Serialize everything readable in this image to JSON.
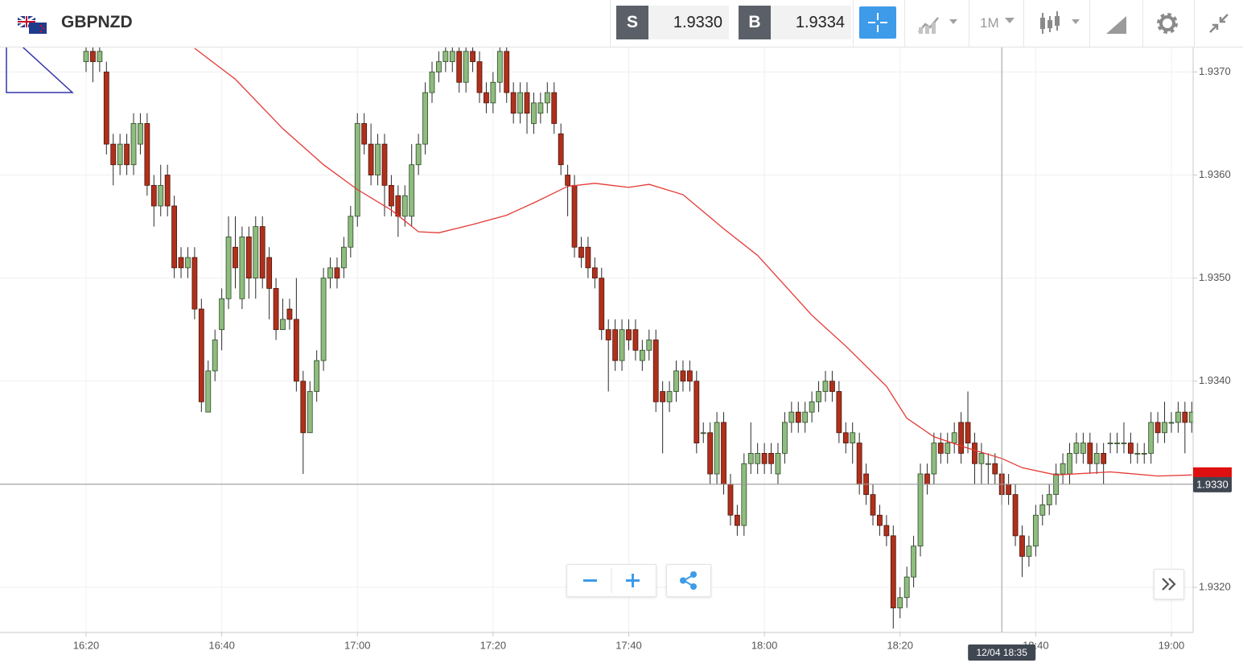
{
  "header": {
    "symbol": "GBPNZD",
    "sell_label": "S",
    "sell": "1.9330",
    "buy_label": "B",
    "buy": "1.9334",
    "timeframe": "1M"
  },
  "chart_data": {
    "type": "candlestick",
    "x": [
      "16:20",
      "16:21",
      "16:22",
      "16:23",
      "16:24",
      "16:25",
      "16:26",
      "16:27",
      "16:28",
      "16:29",
      "16:30",
      "16:31",
      "16:32",
      "16:33",
      "16:34",
      "16:35",
      "16:36",
      "16:37",
      "16:38",
      "16:39",
      "16:40",
      "16:41",
      "16:42",
      "16:43",
      "16:44",
      "16:45",
      "16:46",
      "16:47",
      "16:48",
      "16:49",
      "16:50",
      "16:51",
      "16:52",
      "16:53",
      "16:54",
      "16:55",
      "16:56",
      "16:57",
      "16:58",
      "16:59",
      "17:00",
      "17:01",
      "17:02",
      "17:03",
      "17:04",
      "17:05",
      "17:06",
      "17:07",
      "17:08",
      "17:09",
      "17:10",
      "17:11",
      "17:12",
      "17:13",
      "17:14",
      "17:15",
      "17:16",
      "17:17",
      "17:18",
      "17:19",
      "17:20",
      "17:21",
      "17:22",
      "17:23",
      "17:24",
      "17:25",
      "17:26",
      "17:27",
      "17:28",
      "17:29",
      "17:30",
      "17:31",
      "17:32",
      "17:33",
      "17:34",
      "17:35",
      "17:36",
      "17:37",
      "17:38",
      "17:39",
      "17:40",
      "17:41",
      "17:42",
      "17:43",
      "17:44",
      "17:45",
      "17:46",
      "17:47",
      "17:48",
      "17:49",
      "17:50",
      "17:51",
      "17:52",
      "17:53",
      "17:54",
      "17:55",
      "17:56",
      "17:57",
      "17:58",
      "17:59",
      "18:00",
      "18:01",
      "18:02",
      "18:03",
      "18:04",
      "18:05",
      "18:06",
      "18:07",
      "18:08",
      "18:09",
      "18:10",
      "18:11",
      "18:12",
      "18:13",
      "18:14",
      "18:15",
      "18:16",
      "18:17",
      "18:18",
      "18:19",
      "18:20",
      "18:21",
      "18:22",
      "18:23",
      "18:24",
      "18:25",
      "18:26",
      "18:27",
      "18:28",
      "18:29",
      "18:30",
      "18:31",
      "18:32",
      "18:33",
      "18:34",
      "18:35",
      "18:36",
      "18:37",
      "18:38",
      "18:39",
      "18:40",
      "18:41",
      "18:42",
      "18:43",
      "18:44",
      "18:45",
      "18:46",
      "18:47",
      "18:48",
      "18:49",
      "18:50",
      "18:51",
      "18:52",
      "18:53",
      "18:54",
      "18:55",
      "18:56",
      "18:57",
      "18:58",
      "18:59",
      "19:00",
      "19:01",
      "19:02",
      "19:03"
    ],
    "open": [
      1.9371,
      1.9372,
      1.9371,
      1.937,
      1.9363,
      1.9361,
      1.9363,
      1.9361,
      1.9363,
      1.9365,
      1.9359,
      1.9357,
      1.936,
      1.9357,
      1.9352,
      1.9351,
      1.9352,
      1.9347,
      1.9337,
      1.9341,
      1.9345,
      1.9348,
      1.9353,
      1.9348,
      1.9354,
      1.935,
      1.9355,
      1.9352,
      1.9349,
      1.9345,
      1.9347,
      1.9346,
      1.934,
      1.9335,
      1.9339,
      1.9342,
      1.935,
      1.9351,
      1.9351,
      1.9353,
      1.9356,
      1.9365,
      1.9363,
      1.936,
      1.9363,
      1.9359,
      1.9358,
      1.9356,
      1.9356,
      1.9361,
      1.9363,
      1.9368,
      1.937,
      1.9371,
      1.9371,
      1.9372,
      1.9369,
      1.9372,
      1.9371,
      1.9368,
      1.9367,
      1.9369,
      1.9372,
      1.9368,
      1.9366,
      1.9368,
      1.9365,
      1.9366,
      1.9367,
      1.9368,
      1.9364,
      1.936,
      1.9359,
      1.9353,
      1.9353,
      1.9351,
      1.935,
      1.9345,
      1.9345,
      1.9342,
      1.9345,
      1.9345,
      1.9342,
      1.9343,
      1.9344,
      1.9339,
      1.9338,
      1.9339,
      1.9341,
      1.9341,
      1.934,
      1.9335,
      1.9335,
      1.9331,
      1.9336,
      1.933,
      1.9327,
      1.9326,
      1.9332,
      1.9332,
      1.9333,
      1.9333,
      1.9331,
      1.9333,
      1.9336,
      1.9337,
      1.9336,
      1.9337,
      1.9338,
      1.9339,
      1.934,
      1.9339,
      1.9335,
      1.9334,
      1.9334,
      1.9331,
      1.9329,
      1.9327,
      1.9326,
      1.9325,
      1.9318,
      1.9319,
      1.9321,
      1.9324,
      1.9331,
      1.9331,
      1.9334,
      1.9333,
      1.9334,
      1.9336,
      1.9336,
      1.9334,
      1.9332,
      1.9332,
      1.9332,
      1.9331,
      1.933,
      1.9329,
      1.9325,
      1.9323,
      1.9324,
      1.9327,
      1.9328,
      1.9329,
      1.9331,
      1.9331,
      1.9333,
      1.9333,
      1.9334,
      1.9332,
      1.9333,
      1.9334,
      1.9334,
      1.9334,
      1.9334,
      1.9333,
      1.9333,
      1.9333,
      1.9336,
      1.9335,
      1.9336,
      1.9336,
      1.9337,
      1.9336
    ],
    "high": [
      1.9373,
      1.9373,
      1.9373,
      1.9371,
      1.9364,
      1.9364,
      1.9364,
      1.9366,
      1.9366,
      1.9366,
      1.936,
      1.9361,
      1.9361,
      1.9358,
      1.9353,
      1.9353,
      1.9353,
      1.9348,
      1.9342,
      1.9345,
      1.9349,
      1.9356,
      1.9356,
      1.9355,
      1.9355,
      1.9356,
      1.9356,
      1.9353,
      1.935,
      1.9348,
      1.9348,
      1.935,
      1.9341,
      1.934,
      1.9343,
      1.9351,
      1.9352,
      1.9352,
      1.9354,
      1.9357,
      1.9366,
      1.9366,
      1.9365,
      1.9364,
      1.9364,
      1.936,
      1.9359,
      1.9359,
      1.9363,
      1.9364,
      1.9369,
      1.9371,
      1.9372,
      1.9373,
      1.9373,
      1.9373,
      1.9373,
      1.9373,
      1.9372,
      1.9369,
      1.937,
      1.9373,
      1.9373,
      1.9369,
      1.9369,
      1.9369,
      1.9368,
      1.9368,
      1.9369,
      1.9369,
      1.9365,
      1.9361,
      1.936,
      1.9354,
      1.9354,
      1.9352,
      1.9351,
      1.9346,
      1.9346,
      1.9346,
      1.9346,
      1.9346,
      1.9344,
      1.9345,
      1.9345,
      1.934,
      1.934,
      1.9342,
      1.9342,
      1.9342,
      1.9341,
      1.9336,
      1.9336,
      1.9337,
      1.9337,
      1.9331,
      1.9328,
      1.9333,
      1.9336,
      1.9334,
      1.9334,
      1.9334,
      1.9334,
      1.9337,
      1.9338,
      1.9338,
      1.9338,
      1.9339,
      1.934,
      1.9341,
      1.9341,
      1.934,
      1.9336,
      1.9336,
      1.9335,
      1.9332,
      1.933,
      1.9328,
      1.9327,
      1.9326,
      1.932,
      1.9322,
      1.9325,
      1.9332,
      1.9332,
      1.9335,
      1.9335,
      1.9335,
      1.9336,
      1.9337,
      1.9339,
      1.9335,
      1.9334,
      1.9333,
      1.9333,
      1.9332,
      1.9331,
      1.933,
      1.9326,
      1.9325,
      1.9328,
      1.9329,
      1.933,
      1.9332,
      1.9333,
      1.9334,
      1.9335,
      1.9335,
      1.9335,
      1.9334,
      1.9334,
      1.9335,
      1.9335,
      1.9336,
      1.9335,
      1.9334,
      1.9334,
      1.9337,
      1.9337,
      1.9338,
      1.9337,
      1.9338,
      1.9338,
      1.9338
    ],
    "low": [
      1.937,
      1.9369,
      1.937,
      1.9362,
      1.9359,
      1.936,
      1.936,
      1.936,
      1.9362,
      1.9358,
      1.9355,
      1.9356,
      1.9356,
      1.935,
      1.935,
      1.935,
      1.9346,
      1.9337,
      1.9337,
      1.934,
      1.9343,
      1.9347,
      1.9349,
      1.9347,
      1.9348,
      1.9348,
      1.9349,
      1.9346,
      1.9344,
      1.9345,
      1.9345,
      1.9339,
      1.9331,
      1.9335,
      1.9338,
      1.9341,
      1.9349,
      1.9349,
      1.935,
      1.9352,
      1.9355,
      1.9362,
      1.9359,
      1.9359,
      1.9356,
      1.9356,
      1.9354,
      1.9355,
      1.9355,
      1.936,
      1.9362,
      1.9367,
      1.9369,
      1.937,
      1.937,
      1.9368,
      1.9368,
      1.937,
      1.9367,
      1.9366,
      1.9366,
      1.9368,
      1.9367,
      1.9365,
      1.9365,
      1.9364,
      1.9364,
      1.9365,
      1.9366,
      1.9364,
      1.936,
      1.9356,
      1.9352,
      1.9351,
      1.935,
      1.9349,
      1.9344,
      1.9339,
      1.9341,
      1.9341,
      1.9343,
      1.9342,
      1.9341,
      1.9342,
      1.9337,
      1.9333,
      1.9337,
      1.9338,
      1.9339,
      1.9339,
      1.9333,
      1.9334,
      1.933,
      1.933,
      1.9329,
      1.9326,
      1.9325,
      1.9325,
      1.9331,
      1.9331,
      1.9331,
      1.9331,
      1.933,
      1.9332,
      1.9335,
      1.9335,
      1.9335,
      1.9336,
      1.9337,
      1.9338,
      1.9338,
      1.9334,
      1.9333,
      1.9332,
      1.9329,
      1.9328,
      1.9326,
      1.9325,
      1.9324,
      1.9316,
      1.9317,
      1.9318,
      1.932,
      1.9323,
      1.9329,
      1.933,
      1.9332,
      1.9332,
      1.9333,
      1.9332,
      1.9333,
      1.933,
      1.933,
      1.933,
      1.933,
      1.9328,
      1.9328,
      1.9324,
      1.9321,
      1.9322,
      1.9323,
      1.9326,
      1.9327,
      1.9328,
      1.933,
      1.933,
      1.9332,
      1.9332,
      1.9331,
      1.9331,
      1.933,
      1.9333,
      1.9333,
      1.9333,
      1.9332,
      1.9332,
      1.9332,
      1.9332,
      1.9334,
      1.9334,
      1.9335,
      1.9335,
      1.9333,
      1.9335
    ],
    "close": [
      1.9372,
      1.9371,
      1.9372,
      1.9363,
      1.9361,
      1.9363,
      1.9361,
      1.9365,
      1.9365,
      1.9359,
      1.9357,
      1.9359,
      1.9357,
      1.9351,
      1.9351,
      1.9352,
      1.9347,
      1.9338,
      1.9341,
      1.9344,
      1.9348,
      1.9354,
      1.9351,
      1.9354,
      1.935,
      1.9355,
      1.935,
      1.9349,
      1.9345,
      1.9346,
      1.9346,
      1.934,
      1.9335,
      1.9339,
      1.9342,
      1.935,
      1.9351,
      1.935,
      1.9353,
      1.9356,
      1.9365,
      1.9363,
      1.936,
      1.9363,
      1.9359,
      1.9357,
      1.9356,
      1.9358,
      1.9361,
      1.9363,
      1.9368,
      1.937,
      1.9371,
      1.9372,
      1.9372,
      1.9369,
      1.9372,
      1.9371,
      1.9368,
      1.9367,
      1.9369,
      1.9372,
      1.9368,
      1.9366,
      1.9368,
      1.9366,
      1.9367,
      1.9367,
      1.9368,
      1.9365,
      1.9361,
      1.9359,
      1.9353,
      1.9352,
      1.9351,
      1.935,
      1.9345,
      1.9344,
      1.9342,
      1.9345,
      1.9344,
      1.9343,
      1.9343,
      1.9344,
      1.9338,
      1.9338,
      1.9339,
      1.9341,
      1.934,
      1.934,
      1.9334,
      1.9335,
      1.9331,
      1.9336,
      1.933,
      1.9327,
      1.9326,
      1.9332,
      1.9333,
      1.9333,
      1.9332,
      1.9332,
      1.9333,
      1.9336,
      1.9337,
      1.9336,
      1.9337,
      1.9338,
      1.9339,
      1.934,
      1.9339,
      1.9335,
      1.9334,
      1.9335,
      1.933,
      1.9329,
      1.9327,
      1.9326,
      1.9325,
      1.9318,
      1.9319,
      1.9321,
      1.9324,
      1.9331,
      1.933,
      1.9334,
      1.9333,
      1.9334,
      1.9335,
      1.9333,
      1.9334,
      1.9332,
      1.9333,
      1.9332,
      1.9331,
      1.9329,
      1.9329,
      1.9325,
      1.9323,
      1.9324,
      1.9327,
      1.9328,
      1.9329,
      1.9331,
      1.9332,
      1.9333,
      1.9334,
      1.9334,
      1.9332,
      1.9333,
      1.9332,
      1.9334,
      1.9334,
      1.9334,
      1.9333,
      1.9333,
      1.9333,
      1.9336,
      1.9335,
      1.9336,
      1.9336,
      1.9337,
      1.9336,
      1.9337
    ],
    "up_color": "#8fbc7f",
    "down_color": "#b0301c",
    "xlim": [
      "16:07",
      "19:04"
    ],
    "xticks": [
      "16:20",
      "16:40",
      "17:00",
      "17:20",
      "17:40",
      "18:00",
      "18:20",
      "18:40",
      "19:00"
    ],
    "ylim": [
      1.93157,
      1.93723
    ],
    "yticks": [
      {
        "value": 1.932,
        "label": "1.9320"
      },
      {
        "value": 1.933,
        "label": "1.9330"
      },
      {
        "value": 1.934,
        "label": "1.9340"
      },
      {
        "value": 1.935,
        "label": "1.9350"
      },
      {
        "value": 1.936,
        "label": "1.9360"
      },
      {
        "value": 1.937,
        "label": "1.9370"
      }
    ],
    "grid": true,
    "moving_average": {
      "color": "#e53935",
      "x": [
        "16:36",
        "16:42",
        "16:49",
        "16:55",
        "17:00",
        "17:05",
        "17:09",
        "17:12",
        "17:17",
        "17:22",
        "17:26",
        "17:31",
        "17:35",
        "17:40",
        "17:43",
        "17:48",
        "17:54",
        "17:59",
        "18:03",
        "18:07",
        "18:12",
        "18:18",
        "18:21",
        "18:25",
        "18:30",
        "18:35",
        "18:38",
        "18:43",
        "18:51",
        "18:58",
        "19:03"
      ],
      "values": [
        1.93723,
        1.93693,
        1.93645,
        1.9361,
        1.93586,
        1.93566,
        1.93545,
        1.93544,
        1.93552,
        1.93561,
        1.93573,
        1.93589,
        1.93592,
        1.93588,
        1.93591,
        1.93581,
        1.93548,
        1.93522,
        1.93493,
        1.93464,
        1.93434,
        1.93395,
        1.93364,
        1.93346,
        1.93335,
        1.93325,
        1.93316,
        1.93309,
        1.93312,
        1.93308,
        1.93309
      ]
    },
    "last_price": {
      "value": 1.933,
      "label": "1.9330"
    },
    "crosshair": {
      "x": "18:35",
      "label": "12/04 18:35"
    }
  }
}
